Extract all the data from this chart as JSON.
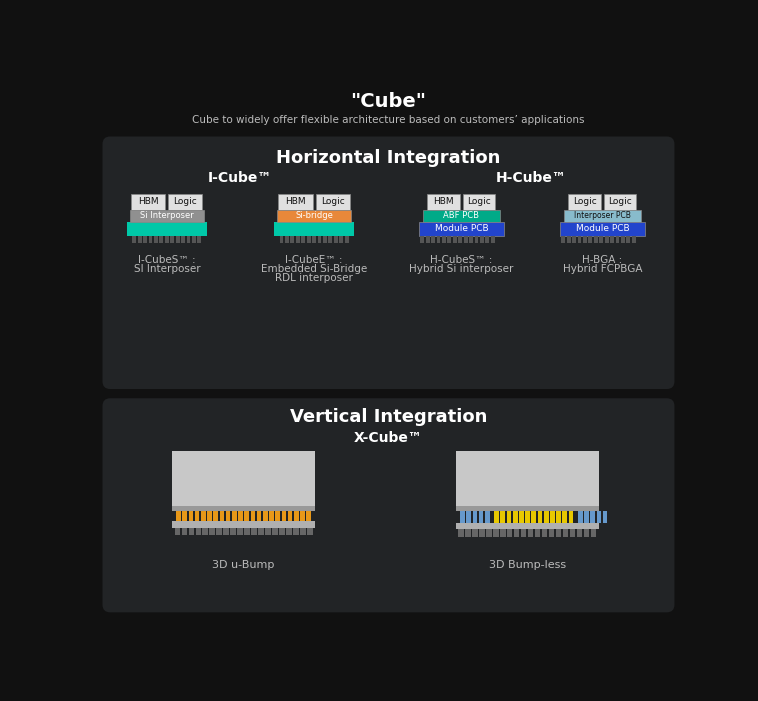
{
  "bg_color": "#111111",
  "panel_color": "#222426",
  "title": "\"Cube\"",
  "subtitle": "Cube to widely offer flexible architecture based on customers’ applications",
  "horiz_title": "Horizontal Integration",
  "vert_title": "Vertical Integration",
  "xcube_title": "X-Cube™",
  "icube_title": "I-Cube™",
  "hcube_title": "H-Cube™",
  "white": "#ffffff",
  "light_gray": "#bbbbbb",
  "teal": "#00c8a8",
  "orange": "#e8883a",
  "blue": "#2244dd",
  "chip_white": "#e0e0e0",
  "interposer_gray": "#909090",
  "module_pcb_blue": "#2244cc",
  "abf_teal": "#00aa88",
  "interposer_pcb_light": "#88bbcc",
  "bump_gray": "#555555",
  "bump_orange": "#e89818",
  "bump_blue": "#6699cc",
  "bump_yellow": "#e8c800",
  "xcube_body": "#c8c8c8",
  "xcube_base": "#b0b0b0"
}
